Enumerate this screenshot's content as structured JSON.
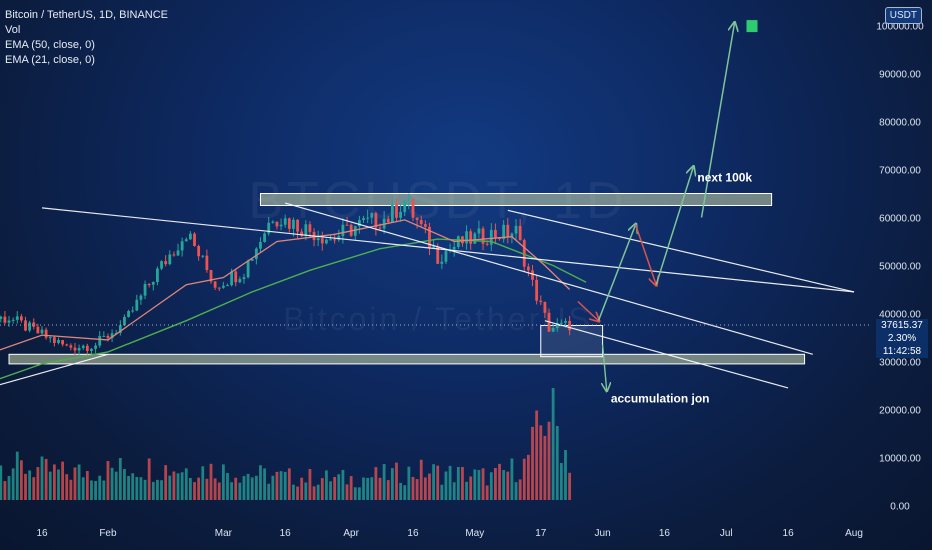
{
  "legend": {
    "title": "Bitcoin / TetherUS, 1D, BINANCE",
    "vol": "Vol",
    "ema50": "EMA (50, close, 0)",
    "ema21": "EMA (21, close, 0)"
  },
  "watermark": {
    "ticker": "BTCUSDT, 1D",
    "name": "Bitcoin / TetherUS"
  },
  "currency_button": "USDT",
  "last_price": {
    "price": "37615.37",
    "change": "2.30%",
    "countdown": "11:42:58"
  },
  "colors": {
    "up": "#26a69a",
    "down": "#ef5350",
    "ema50": "#4caf50",
    "ema21": "#e0857a",
    "channel": "#ffffff",
    "zone_fill": "#c8d5a8",
    "projection_up": "#7ec49a",
    "projection_down": "#d9534f",
    "flag": "#2ecc71"
  },
  "annotations": {
    "target": "next  100k",
    "accumulation": "accumulation jon"
  },
  "chart_data": {
    "type": "candlestick",
    "title": "Bitcoin / TetherUS, 1D, BINANCE",
    "y_axis_ticks": [
      0,
      10000,
      20000,
      30000,
      40000,
      50000,
      60000,
      70000,
      80000,
      90000,
      100000
    ],
    "y_tick_labels": [
      "0.00",
      "10000.00",
      "20000.00",
      "30000.00",
      "40000.00",
      "50000.00",
      "60000.00",
      "70000.00",
      "80000.00",
      "90000.00",
      "100000.00"
    ],
    "x_tick_labels": [
      "16",
      "Feb",
      "Mar",
      "16",
      "Apr",
      "16",
      "May",
      "17",
      "Jun",
      "16",
      "Jul",
      "16",
      "Aug"
    ],
    "x_tick_dates": [
      "2021-01-16",
      "2021-02-01",
      "2021-03-01",
      "2021-03-16",
      "2021-04-01",
      "2021-04-16",
      "2021-05-01",
      "2021-05-17",
      "2021-06-01",
      "2021-06-16",
      "2021-07-01",
      "2021-07-16",
      "2021-08-01"
    ],
    "last_close": 37615.37,
    "change_percent": 2.3,
    "volume_max": 24000,
    "price_path_weekly": [
      {
        "date": "2021-01-08",
        "close": 39000
      },
      {
        "date": "2021-01-15",
        "close": 36000
      },
      {
        "date": "2021-01-22",
        "close": 33000
      },
      {
        "date": "2021-01-29",
        "close": 33500
      },
      {
        "date": "2021-02-05",
        "close": 38000
      },
      {
        "date": "2021-02-12",
        "close": 47500
      },
      {
        "date": "2021-02-20",
        "close": 57000
      },
      {
        "date": "2021-02-27",
        "close": 46000
      },
      {
        "date": "2021-03-06",
        "close": 49000
      },
      {
        "date": "2021-03-13",
        "close": 60500
      },
      {
        "date": "2021-03-20",
        "close": 58000
      },
      {
        "date": "2021-03-27",
        "close": 55500
      },
      {
        "date": "2021-04-03",
        "close": 58500
      },
      {
        "date": "2021-04-10",
        "close": 60000
      },
      {
        "date": "2021-04-14",
        "close": 63500
      },
      {
        "date": "2021-04-22",
        "close": 52000
      },
      {
        "date": "2021-04-28",
        "close": 55000
      },
      {
        "date": "2021-05-05",
        "close": 56500
      },
      {
        "date": "2021-05-11",
        "close": 57000
      },
      {
        "date": "2021-05-15",
        "close": 46000
      },
      {
        "date": "2021-05-19",
        "close": 37000
      },
      {
        "date": "2021-05-24",
        "close": 37615
      }
    ],
    "volume_path_weekly": [
      {
        "date": "2021-01-08",
        "value": 9000
      },
      {
        "date": "2021-01-22",
        "value": 7000
      },
      {
        "date": "2021-02-08",
        "value": 8500
      },
      {
        "date": "2021-02-26",
        "value": 8000
      },
      {
        "date": "2021-03-14",
        "value": 6000
      },
      {
        "date": "2021-04-01",
        "value": 5500
      },
      {
        "date": "2021-04-18",
        "value": 7500
      },
      {
        "date": "2021-05-05",
        "value": 6000
      },
      {
        "date": "2021-05-13",
        "value": 9000
      },
      {
        "date": "2021-05-19",
        "value": 24000
      },
      {
        "date": "2021-05-24",
        "value": 10000
      }
    ],
    "ema50_path": [
      {
        "date": "2021-01-01",
        "value": 25000
      },
      {
        "date": "2021-01-16",
        "value": 29500
      },
      {
        "date": "2021-02-01",
        "value": 32000
      },
      {
        "date": "2021-02-20",
        "value": 38500
      },
      {
        "date": "2021-03-08",
        "value": 44500
      },
      {
        "date": "2021-03-22",
        "value": 49000
      },
      {
        "date": "2021-04-08",
        "value": 53500
      },
      {
        "date": "2021-04-22",
        "value": 55500
      },
      {
        "date": "2021-05-05",
        "value": 55000
      },
      {
        "date": "2021-05-20",
        "value": 50000
      },
      {
        "date": "2021-05-28",
        "value": 46500
      }
    ],
    "ema21_path": [
      {
        "date": "2021-01-01",
        "value": 31000
      },
      {
        "date": "2021-01-16",
        "value": 35500
      },
      {
        "date": "2021-02-01",
        "value": 34500
      },
      {
        "date": "2021-02-20",
        "value": 46000
      },
      {
        "date": "2021-03-01",
        "value": 47500
      },
      {
        "date": "2021-03-14",
        "value": 55000
      },
      {
        "date": "2021-03-28",
        "value": 56500
      },
      {
        "date": "2021-04-14",
        "value": 59500
      },
      {
        "date": "2021-04-26",
        "value": 55000
      },
      {
        "date": "2021-05-10",
        "value": 56000
      },
      {
        "date": "2021-05-18",
        "value": 50000
      },
      {
        "date": "2021-05-24",
        "value": 45000
      }
    ],
    "channel_lines": [
      {
        "from": {
          "date": "2021-01-16",
          "price": 62000
        },
        "to": {
          "date": "2021-08-01",
          "price": 44500
        }
      },
      {
        "from": {
          "date": "2021-03-16",
          "price": 63000
        },
        "to": {
          "date": "2021-07-22",
          "price": 31500
        }
      },
      {
        "from": {
          "date": "2021-05-09",
          "price": 61500
        },
        "to": {
          "date": "2021-08-01",
          "price": 44500
        }
      },
      {
        "from": {
          "date": "2021-05-18",
          "price": 38500
        },
        "to": {
          "date": "2021-07-16",
          "price": 24500
        }
      },
      {
        "from": {
          "date": "2021-01-03",
          "price": 24500
        },
        "to": {
          "date": "2021-02-01",
          "price": 31500
        }
      }
    ],
    "zones": [
      {
        "name": "resistance-zone",
        "from_date": "2021-03-10",
        "to_date": "2021-07-12",
        "price_low": 62500,
        "price_high": 65000
      },
      {
        "name": "support-zone",
        "from_date": "2021-01-08",
        "to_date": "2021-07-20",
        "price_low": 29500,
        "price_high": 31500
      },
      {
        "name": "accumulation-box",
        "from_date": "2021-05-17",
        "to_date": "2021-06-01",
        "price_low": 31000,
        "price_high": 37500
      }
    ],
    "projection_path": [
      {
        "date": "2021-05-21",
        "price": 36500
      },
      {
        "date": "2021-05-26",
        "price": 42500
      },
      {
        "date": "2021-05-31",
        "price": 38500
      },
      {
        "date": "2021-06-05",
        "price": 49000
      },
      {
        "date": "2021-06-09",
        "price": 58500
      },
      {
        "date": "2021-06-14",
        "price": 46000
      },
      {
        "date": "2021-06-23",
        "price": 70500
      },
      {
        "date": "2021-06-25",
        "price": 60000
      },
      {
        "date": "2021-07-03",
        "price": 100500
      }
    ],
    "projection_legs": [
      {
        "from": {
          "date": "2021-05-26",
          "price": 42500
        },
        "to": {
          "date": "2021-05-31",
          "price": 38500
        },
        "dir": "down"
      },
      {
        "from": {
          "date": "2021-05-31",
          "price": 38500
        },
        "to": {
          "date": "2021-06-09",
          "price": 58500
        },
        "dir": "up"
      },
      {
        "from": {
          "date": "2021-06-09",
          "price": 58500
        },
        "to": {
          "date": "2021-06-14",
          "price": 46000
        },
        "dir": "down"
      },
      {
        "from": {
          "date": "2021-06-14",
          "price": 46000
        },
        "to": {
          "date": "2021-06-23",
          "price": 70500
        },
        "dir": "up"
      },
      {
        "from": {
          "date": "2021-06-25",
          "price": 60000
        },
        "to": {
          "date": "2021-07-03",
          "price": 100500
        },
        "dir": "up"
      }
    ],
    "accumulation_arrow": {
      "from": {
        "date": "2021-06-01",
        "price": 33500
      },
      "to": {
        "date": "2021-06-02",
        "price": 24000
      }
    },
    "target_flag": {
      "date": "2021-07-03",
      "price": 100500
    },
    "target_label_anchor": {
      "date": "2021-06-24",
      "price": 67500
    },
    "accumulation_label_anchor": {
      "date": "2021-06-03",
      "price": 21500
    }
  }
}
